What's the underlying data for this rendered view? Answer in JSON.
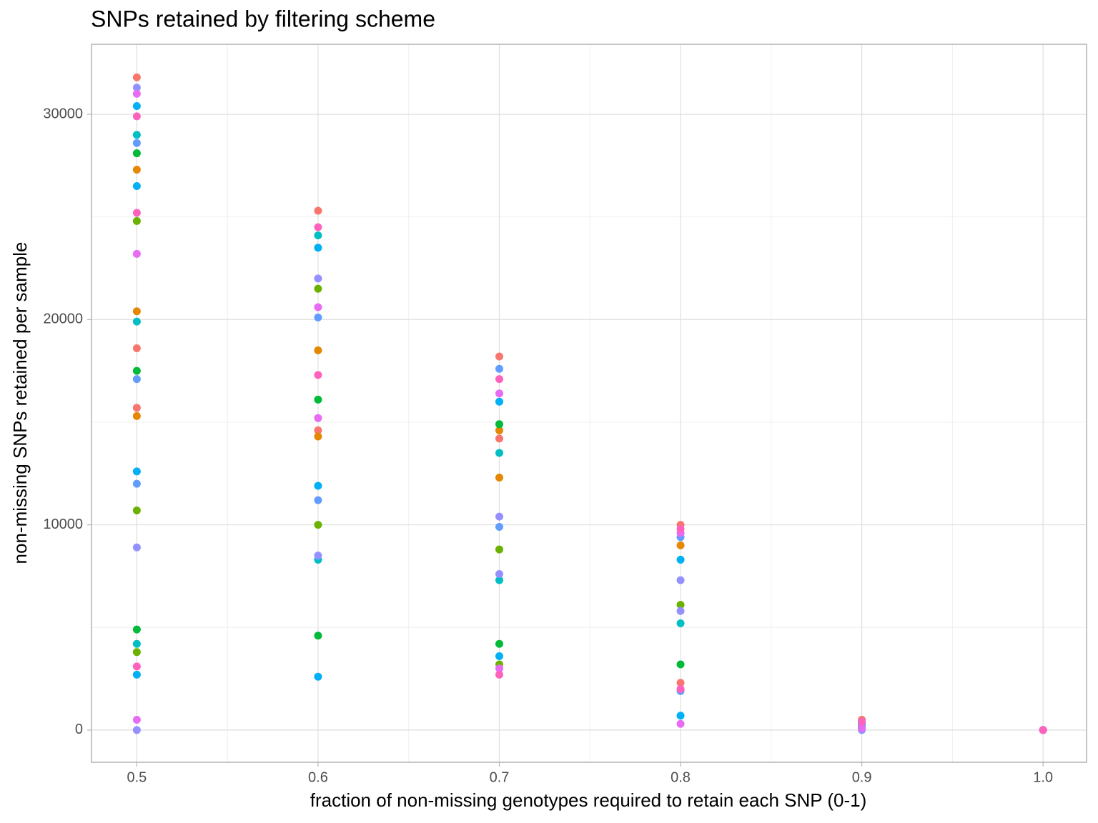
{
  "chart_data": {
    "type": "scatter",
    "title": "SNPs retained by filtering scheme",
    "x_label": "fraction of non-missing genotypes required to retain each SNP (0-1)",
    "y_label": "non-missing SNPs retained per sample",
    "xlim": [
      0.475,
      1.024
    ],
    "ylim": [
      -1570,
      33410
    ],
    "xticks": [
      {
        "value": 0.5,
        "label": "0.5"
      },
      {
        "value": 0.6,
        "label": "0.6"
      },
      {
        "value": 0.7,
        "label": "0.7"
      },
      {
        "value": 0.8,
        "label": "0.8"
      },
      {
        "value": 0.9,
        "label": "0.9"
      },
      {
        "value": 1.0,
        "label": "1.0"
      }
    ],
    "yticks": [
      0,
      10000,
      20000,
      30000
    ],
    "minor_xticks": [
      0.55,
      0.65,
      0.75,
      0.85,
      0.95
    ],
    "minor_yticks": [
      5000,
      15000,
      25000
    ],
    "grid": true,
    "series": [
      {
        "color": "#F8766D",
        "x": [
          0.5,
          0.5,
          0.5,
          0.6,
          0.6,
          0.7,
          0.7,
          0.8,
          0.8,
          0.9,
          1.0
        ],
        "values": [
          31800,
          18600,
          15700,
          25300,
          14600,
          18200,
          14200,
          10000,
          2300,
          500,
          0
        ]
      },
      {
        "color": "#E58700",
        "x": [
          0.5,
          0.5,
          0.5,
          0.6,
          0.6,
          0.7,
          0.7,
          0.8,
          0.9,
          1.0
        ],
        "values": [
          27300,
          20400,
          15300,
          18500,
          14300,
          14600,
          12300,
          9000,
          300,
          0
        ]
      },
      {
        "color": "#6BB100",
        "x": [
          0.5,
          0.5,
          0.5,
          0.6,
          0.6,
          0.7,
          0.7,
          0.8,
          0.9,
          1.0
        ],
        "values": [
          24800,
          10700,
          3800,
          21500,
          10000,
          8800,
          3200,
          6100,
          200,
          0
        ]
      },
      {
        "color": "#00BA38",
        "x": [
          0.5,
          0.5,
          0.5,
          0.6,
          0.6,
          0.7,
          0.7,
          0.8,
          0.9,
          1.0
        ],
        "values": [
          28100,
          17500,
          4900,
          16100,
          4600,
          14900,
          4200,
          3200,
          100,
          0
        ]
      },
      {
        "color": "#00BFC4",
        "x": [
          0.5,
          0.5,
          0.5,
          0.6,
          0.6,
          0.7,
          0.7,
          0.8,
          0.9,
          1.0
        ],
        "values": [
          29000,
          19900,
          4200,
          24100,
          8300,
          13500,
          7300,
          5200,
          300,
          0
        ]
      },
      {
        "color": "#00B0F6",
        "x": [
          0.5,
          0.5,
          0.5,
          0.5,
          0.6,
          0.6,
          0.6,
          0.7,
          0.7,
          0.8,
          0.8,
          0.9,
          1.0
        ],
        "values": [
          30400,
          26500,
          12600,
          2700,
          23500,
          11900,
          2600,
          16000,
          3600,
          8300,
          700,
          400,
          0
        ]
      },
      {
        "color": "#619CFF",
        "x": [
          0.5,
          0.5,
          0.5,
          0.6,
          0.6,
          0.7,
          0.7,
          0.8,
          0.8,
          0.9,
          1.0
        ],
        "values": [
          28600,
          17100,
          12000,
          20100,
          11200,
          17600,
          9900,
          9400,
          1900,
          200,
          0
        ]
      },
      {
        "color": "#9590FF",
        "x": [
          0.5,
          0.5,
          0.5,
          0.6,
          0.6,
          0.7,
          0.7,
          0.8,
          0.8,
          0.9,
          1.0
        ],
        "values": [
          31300,
          8900,
          0,
          22000,
          8500,
          10400,
          7600,
          7300,
          5800,
          0,
          0
        ]
      },
      {
        "color": "#E76BF3",
        "x": [
          0.5,
          0.5,
          0.5,
          0.6,
          0.6,
          0.7,
          0.7,
          0.8,
          0.8,
          0.9,
          1.0
        ],
        "values": [
          31000,
          23200,
          500,
          20600,
          15200,
          16400,
          3000,
          9600,
          300,
          100,
          0
        ]
      },
      {
        "color": "#FF62BC",
        "x": [
          0.5,
          0.5,
          0.5,
          0.6,
          0.6,
          0.7,
          0.7,
          0.8,
          0.8,
          0.9,
          1.0
        ],
        "values": [
          29900,
          25200,
          3100,
          24500,
          17300,
          17100,
          2700,
          9800,
          2000,
          400,
          0
        ]
      }
    ]
  }
}
